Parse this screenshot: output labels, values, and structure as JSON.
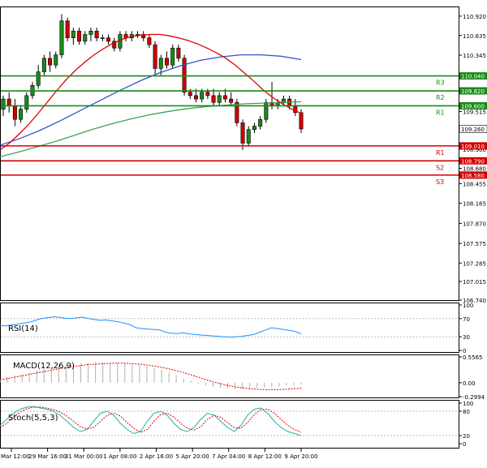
{
  "chart_data": [
    {
      "type": "candlestick",
      "name": "price",
      "y_ticks": [
        "110.920",
        "110.635",
        "110.345",
        "110.040",
        "109.820",
        "109.600",
        "109.515",
        "109.260",
        "109.010",
        "108.960",
        "108.790",
        "108.680",
        "108.580",
        "108.455",
        "108.165",
        "107.870",
        "107.575",
        "107.285",
        "107.015",
        "106.740"
      ],
      "ylim": [
        106.74,
        111.05
      ],
      "current_price": "109.260",
      "levels": [
        {
          "label": "R3",
          "value": "110.040",
          "kind": "resistance",
          "color": "#1a8a1a"
        },
        {
          "label": "R2",
          "value": "109.820",
          "kind": "resistance",
          "color": "#1a8a1a"
        },
        {
          "label": "R1",
          "value": "109.600",
          "kind": "resistance",
          "color": "#1a8a1a"
        },
        {
          "label": "R1",
          "value": "109.010",
          "kind": "support",
          "color": "#d00000"
        },
        {
          "label": "S2",
          "value": "108.790",
          "kind": "support",
          "color": "#d00000"
        },
        {
          "label": "S3",
          "value": "108.580",
          "kind": "support",
          "color": "#d00000"
        }
      ],
      "candles": [
        [
          109.55,
          109.75,
          109.45,
          109.7
        ],
        [
          109.7,
          109.8,
          109.5,
          109.6
        ],
        [
          109.6,
          109.7,
          109.3,
          109.4
        ],
        [
          109.4,
          109.6,
          109.35,
          109.55
        ],
        [
          109.55,
          109.8,
          109.5,
          109.75
        ],
        [
          109.75,
          109.95,
          109.7,
          109.9
        ],
        [
          109.9,
          110.2,
          109.85,
          110.1
        ],
        [
          110.1,
          110.35,
          110.05,
          110.3
        ],
        [
          110.3,
          110.4,
          110.1,
          110.2
        ],
        [
          110.2,
          110.4,
          110.15,
          110.35
        ],
        [
          110.35,
          110.95,
          110.3,
          110.85
        ],
        [
          110.85,
          110.9,
          110.55,
          110.6
        ],
        [
          110.6,
          110.75,
          110.5,
          110.7
        ],
        [
          110.7,
          110.75,
          110.5,
          110.55
        ],
        [
          110.55,
          110.7,
          110.5,
          110.65
        ],
        [
          110.65,
          110.75,
          110.55,
          110.7
        ],
        [
          110.7,
          110.75,
          110.55,
          110.6
        ],
        [
          110.6,
          110.65,
          110.55,
          110.6
        ],
        [
          110.6,
          110.65,
          110.5,
          110.55
        ],
        [
          110.55,
          110.6,
          110.4,
          110.45
        ],
        [
          110.45,
          110.7,
          110.4,
          110.65
        ],
        [
          110.65,
          110.7,
          110.55,
          110.6
        ],
        [
          110.6,
          110.7,
          110.55,
          110.65
        ],
        [
          110.65,
          110.7,
          110.6,
          110.65
        ],
        [
          110.65,
          110.7,
          110.55,
          110.6
        ],
        [
          110.6,
          110.65,
          110.45,
          110.5
        ],
        [
          110.5,
          110.55,
          110.05,
          110.15
        ],
        [
          110.15,
          110.35,
          110.05,
          110.3
        ],
        [
          110.3,
          110.4,
          110.15,
          110.2
        ],
        [
          110.2,
          110.5,
          110.15,
          110.45
        ],
        [
          110.45,
          110.5,
          110.25,
          110.3
        ],
        [
          110.3,
          110.35,
          109.75,
          109.8
        ],
        [
          109.8,
          109.85,
          109.7,
          109.75
        ],
        [
          109.75,
          109.85,
          109.65,
          109.7
        ],
        [
          109.7,
          109.85,
          109.65,
          109.8
        ],
        [
          109.8,
          109.85,
          109.7,
          109.75
        ],
        [
          109.75,
          109.85,
          109.6,
          109.65
        ],
        [
          109.65,
          109.8,
          109.6,
          109.75
        ],
        [
          109.75,
          109.85,
          109.65,
          109.7
        ],
        [
          109.7,
          109.8,
          109.6,
          109.65
        ],
        [
          109.65,
          109.7,
          109.3,
          109.35
        ],
        [
          109.35,
          109.4,
          108.95,
          109.05
        ],
        [
          109.05,
          109.3,
          109.0,
          109.25
        ],
        [
          109.25,
          109.35,
          109.2,
          109.3
        ],
        [
          109.3,
          109.45,
          109.25,
          109.4
        ],
        [
          109.4,
          109.7,
          109.35,
          109.65
        ],
        [
          109.65,
          109.95,
          109.55,
          109.6
        ],
        [
          109.6,
          109.7,
          109.55,
          109.65
        ],
        [
          109.65,
          109.75,
          109.6,
          109.7
        ],
        [
          109.7,
          109.75,
          109.55,
          109.6
        ],
        [
          109.6,
          109.7,
          109.45,
          109.5
        ],
        [
          109.5,
          109.55,
          109.2,
          109.26
        ]
      ],
      "sma_red": [
        108.95,
        109.05,
        109.18,
        109.32,
        109.48,
        109.65,
        109.82,
        109.98,
        110.12,
        110.24,
        110.35,
        110.44,
        110.52,
        110.58,
        110.62,
        110.64,
        110.65,
        110.65,
        110.63,
        110.6,
        110.56,
        110.51,
        110.45,
        110.38,
        110.3,
        110.2,
        110.08,
        109.96,
        109.83,
        109.72,
        109.63,
        109.55,
        109.49
      ],
      "sma_blue": [
        109.02,
        109.12,
        109.24,
        109.38,
        109.53,
        109.68,
        109.83,
        109.97,
        110.09,
        110.19,
        110.27,
        110.32,
        110.35,
        110.35,
        110.33,
        110.28
      ],
      "sma_green": [
        108.85,
        108.92,
        109.0,
        109.08,
        109.17,
        109.26,
        109.34,
        109.41,
        109.47,
        109.52,
        109.56,
        109.59,
        109.61,
        109.63,
        109.64,
        109.65,
        109.66
      ]
    },
    {
      "type": "line",
      "name": "RSI",
      "title": "RSI(14)",
      "y_ticks": [
        "100",
        "70",
        "30",
        "0"
      ],
      "ylim": [
        0,
        100
      ],
      "values": [
        55,
        54,
        56,
        58,
        60,
        62,
        66,
        70,
        72,
        74,
        73,
        71,
        70,
        72,
        73,
        70,
        68,
        66,
        67,
        65,
        63,
        60,
        57,
        50,
        48,
        47,
        46,
        45,
        40,
        38,
        37,
        39,
        36,
        35,
        34,
        33,
        32,
        31,
        30,
        29,
        30,
        31,
        33,
        35,
        40,
        45,
        50,
        48,
        46,
        44,
        42,
        36
      ]
    },
    {
      "type": "bar",
      "name": "MACD",
      "title": "MACD(12,26,9)",
      "y_ticks": [
        "0.5565",
        "0.00",
        "-0.2994"
      ],
      "ylim": [
        -0.2994,
        0.5565
      ],
      "values": [
        0.08,
        0.12,
        0.15,
        0.18,
        0.22,
        0.26,
        0.3,
        0.33,
        0.36,
        0.38,
        0.4,
        0.42,
        0.43,
        0.44,
        0.44,
        0.43,
        0.42,
        0.41,
        0.4,
        0.38,
        0.35,
        0.32,
        0.28,
        0.22,
        0.16,
        0.1,
        0.04,
        -0.02,
        -0.06,
        -0.09,
        -0.11,
        -0.12,
        -0.13,
        -0.13,
        -0.12,
        -0.11,
        -0.1,
        -0.09,
        -0.08,
        -0.06,
        -0.05,
        -0.04
      ],
      "signal": [
        0.06,
        0.09,
        0.12,
        0.15,
        0.18,
        0.21,
        0.24,
        0.27,
        0.3,
        0.33,
        0.35,
        0.37,
        0.39,
        0.4,
        0.41,
        0.42,
        0.42,
        0.42,
        0.41,
        0.4,
        0.38,
        0.36,
        0.33,
        0.3,
        0.26,
        0.22,
        0.17,
        0.12,
        0.07,
        0.02,
        -0.02,
        -0.06,
        -0.09,
        -0.11,
        -0.13,
        -0.14,
        -0.15,
        -0.15,
        -0.15,
        -0.14,
        -0.13,
        -0.12
      ]
    },
    {
      "type": "line",
      "name": "Stochastic",
      "title": "Stoch(5,5,3)",
      "y_ticks": [
        "100",
        "80",
        "20",
        "0"
      ],
      "ylim": [
        0,
        100
      ],
      "k": [
        45,
        60,
        75,
        85,
        90,
        92,
        88,
        85,
        80,
        70,
        55,
        40,
        30,
        35,
        55,
        75,
        80,
        70,
        50,
        35,
        25,
        30,
        55,
        75,
        80,
        70,
        50,
        35,
        30,
        40,
        60,
        75,
        70,
        55,
        40,
        30,
        45,
        70,
        85,
        88,
        75,
        55,
        40,
        30,
        25,
        20
      ],
      "d": [
        40,
        50,
        65,
        78,
        86,
        90,
        90,
        88,
        84,
        78,
        68,
        55,
        42,
        36,
        40,
        55,
        70,
        75,
        68,
        52,
        38,
        28,
        35,
        55,
        72,
        75,
        65,
        50,
        38,
        34,
        42,
        60,
        70,
        65,
        52,
        40,
        38,
        52,
        72,
        84,
        85,
        75,
        60,
        45,
        35,
        28
      ]
    },
    {
      "type": "x-axis",
      "tick_labels": [
        "Mar 12:00",
        "29 Mar 16:00",
        "31 Mar 00:00",
        "1 Apr 08:00",
        "2 Apr 16:00",
        "5 Apr 20:00",
        "7 Apr 04:00",
        "8 Apr 12:00",
        "9 Apr 20:00"
      ]
    }
  ]
}
